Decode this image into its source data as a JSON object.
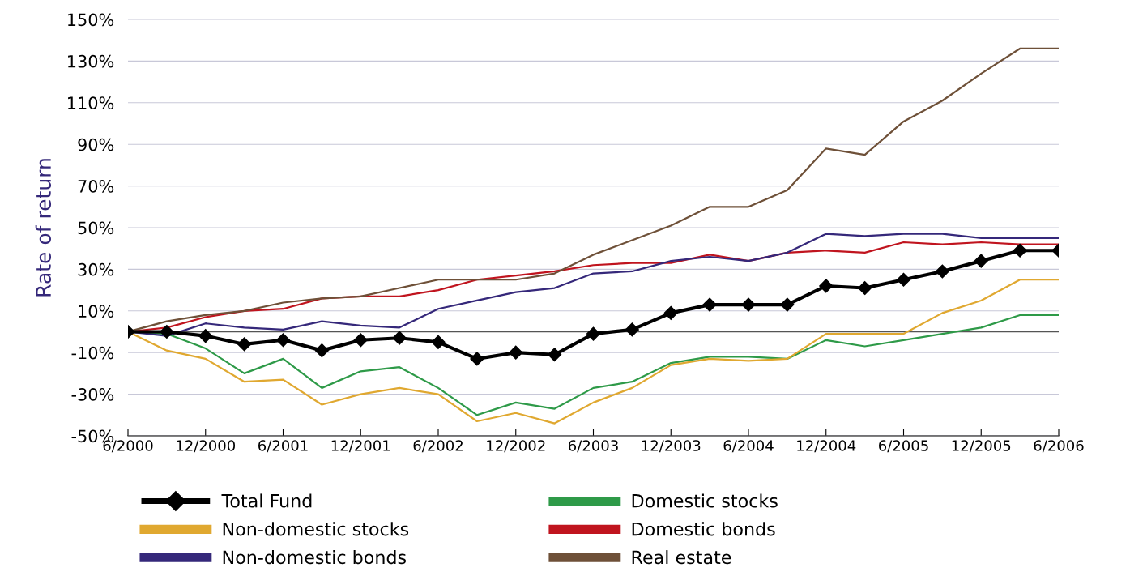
{
  "chart_data": {
    "type": "line",
    "ylabel": "Rate of return",
    "categories": [
      "6/2000",
      null,
      "12/2000",
      null,
      "6/2001",
      null,
      "12/2001",
      null,
      "6/2002",
      null,
      "12/2002",
      null,
      "6/2003",
      null,
      "12/2003",
      null,
      "6/2004",
      null,
      "12/2004",
      null,
      "6/2005",
      null,
      "12/2005",
      null,
      "6/2006"
    ],
    "series": [
      {
        "name": "Total Fund",
        "color": "#000000",
        "marker": "diamond",
        "values": [
          0,
          0,
          -2,
          -6,
          -4,
          -9,
          -4,
          -3,
          -5,
          -13,
          -10,
          -11,
          -1,
          1,
          9,
          13,
          13,
          13,
          22,
          21,
          25,
          29,
          34,
          39,
          39
        ]
      },
      {
        "name": "Domestic stocks",
        "color": "#2e9a48",
        "values": [
          0,
          -1,
          -8,
          -20,
          -13,
          -27,
          -19,
          -17,
          -27,
          -40,
          -34,
          -37,
          -27,
          -24,
          -15,
          -12,
          -12,
          -13,
          -4,
          -7,
          -4,
          -1,
          2,
          8,
          8
        ]
      },
      {
        "name": "Non-domestic stocks",
        "color": "#e0a830",
        "values": [
          0,
          -9,
          -13,
          -24,
          -23,
          -35,
          -30,
          -27,
          -30,
          -43,
          -39,
          -44,
          -34,
          -27,
          -16,
          -13,
          -14,
          -13,
          -1,
          -1,
          -1,
          9,
          15,
          25,
          25
        ]
      },
      {
        "name": "Domestic bonds",
        "color": "#c0141e",
        "values": [
          0,
          2,
          7,
          10,
          11,
          16,
          17,
          17,
          20,
          25,
          27,
          29,
          32,
          33,
          33,
          37,
          34,
          38,
          39,
          38,
          43,
          42,
          43,
          42,
          42
        ]
      },
      {
        "name": "Non-domestic bonds",
        "color": "#35287a",
        "values": [
          0,
          -2,
          4,
          2,
          1,
          5,
          3,
          2,
          11,
          15,
          19,
          21,
          28,
          29,
          34,
          36,
          34,
          38,
          47,
          46,
          47,
          47,
          45,
          45,
          45
        ]
      },
      {
        "name": "Real estate",
        "color": "#6e5038",
        "values": [
          0,
          5,
          8,
          10,
          14,
          16,
          17,
          21,
          25,
          25,
          25,
          28,
          37,
          44,
          51,
          60,
          60,
          68,
          88,
          85,
          101,
          111,
          124,
          136,
          136
        ]
      }
    ],
    "ylim": [
      -50,
      150
    ],
    "yticks": [
      {
        "value": -50,
        "label": "-50%"
      },
      {
        "value": -30,
        "label": "-30%"
      },
      {
        "value": -10,
        "label": "-10%"
      },
      {
        "value": 10,
        "label": "10%"
      },
      {
        "value": 30,
        "label": "30%"
      },
      {
        "value": 50,
        "label": "50%"
      },
      {
        "value": 70,
        "label": "70%"
      },
      {
        "value": 90,
        "label": "90%"
      },
      {
        "value": 110,
        "label": "110%"
      },
      {
        "value": 130,
        "label": "130%"
      },
      {
        "value": 150,
        "label": "150%"
      }
    ],
    "grid": "y",
    "legend": "bottom",
    "ref_lines": [
      {
        "axis": "y",
        "value": 0,
        "color": "#555555"
      }
    ]
  }
}
